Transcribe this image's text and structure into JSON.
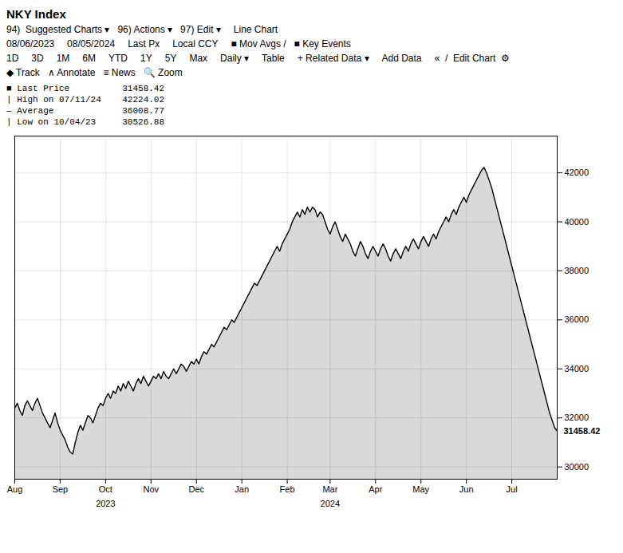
{
  "chart_data": {
    "type": "area",
    "title": "NKY Index",
    "categories": [
      "Aug",
      null,
      null,
      null,
      null,
      null,
      null,
      null,
      null,
      null,
      null,
      null,
      null,
      null,
      null,
      null,
      null,
      null,
      "Sep",
      null,
      null,
      null,
      null,
      null,
      null,
      null,
      null,
      null,
      null,
      null,
      null,
      null,
      null,
      null,
      null,
      null,
      "Oct",
      null,
      null,
      null,
      null,
      null,
      null,
      null,
      null,
      null,
      null,
      null,
      null,
      null,
      null,
      null,
      null,
      null,
      "Nov",
      null,
      null,
      null,
      null,
      null,
      null,
      null,
      null,
      null,
      null,
      null,
      null,
      null,
      null,
      null,
      null,
      null,
      "Dec",
      null,
      null,
      null,
      null,
      null,
      null,
      null,
      null,
      null,
      null,
      null,
      null,
      null,
      null,
      null,
      null,
      null,
      "Jan",
      null,
      null,
      null,
      null,
      null,
      null,
      null,
      null,
      null,
      null,
      null,
      null,
      null,
      null,
      null,
      null,
      null,
      "Feb",
      null,
      null,
      null,
      null,
      null,
      null,
      null,
      null,
      null,
      null,
      null,
      null,
      null,
      null,
      null,
      null,
      "Mar",
      null,
      null,
      null,
      null,
      null,
      null,
      null,
      null,
      null,
      null,
      null,
      null,
      null,
      null,
      null,
      null,
      null,
      "Apr",
      null,
      null,
      null,
      null,
      null,
      null,
      null,
      null,
      null,
      null,
      null,
      null,
      null,
      null,
      null,
      null,
      null,
      "May",
      null,
      null,
      null,
      null,
      null,
      null,
      null,
      null,
      null,
      null,
      null,
      null,
      null,
      null,
      null,
      null,
      null,
      "Jun",
      null,
      null,
      null,
      null,
      null,
      null,
      null,
      null,
      null,
      null,
      null,
      null,
      null,
      null,
      null,
      null,
      null,
      "Jul",
      null,
      null,
      null,
      null,
      null,
      null,
      null,
      null,
      null,
      null,
      null,
      null,
      null,
      null,
      null,
      null,
      null,
      null
    ],
    "values": [
      32400,
      32600,
      32300,
      32100,
      32500,
      32700,
      32500,
      32300,
      32600,
      32800,
      32500,
      32200,
      32000,
      31800,
      31600,
      31900,
      32200,
      31800,
      31500,
      31300,
      31100,
      30800,
      30600,
      30527,
      31000,
      31400,
      31700,
      31500,
      31800,
      32100,
      32000,
      31800,
      32100,
      32400,
      32600,
      32500,
      32800,
      33000,
      32800,
      33100,
      33000,
      33300,
      33100,
      33400,
      33200,
      33500,
      33300,
      33100,
      33400,
      33600,
      33400,
      33700,
      33500,
      33300,
      33500,
      33700,
      33600,
      33800,
      33600,
      33900,
      33700,
      33600,
      33800,
      34000,
      33800,
      34000,
      34200,
      34100,
      33900,
      34100,
      34300,
      34200,
      34400,
      34200,
      34500,
      34700,
      34600,
      34800,
      35000,
      34900,
      35100,
      35300,
      35500,
      35700,
      35600,
      35800,
      36000,
      35900,
      36100,
      36300,
      36500,
      36700,
      36900,
      37100,
      37300,
      37500,
      37400,
      37600,
      37800,
      38000,
      38200,
      38400,
      38600,
      38800,
      39000,
      38800,
      39100,
      39300,
      39500,
      39700,
      40000,
      40200,
      40400,
      40200,
      40500,
      40300,
      40600,
      40400,
      40600,
      40500,
      40200,
      40400,
      40300,
      40000,
      39700,
      39500,
      39800,
      40000,
      39700,
      39400,
      39200,
      39500,
      39300,
      39100,
      38800,
      38600,
      38900,
      39200,
      39000,
      38700,
      38500,
      38800,
      39000,
      38800,
      38600,
      38900,
      39100,
      38900,
      38600,
      38400,
      38700,
      38900,
      38700,
      38500,
      38800,
      39000,
      38800,
      39100,
      39300,
      39100,
      38900,
      39200,
      39400,
      39200,
      39000,
      39300,
      39500,
      39300,
      39600,
      39800,
      40000,
      40200,
      40000,
      40300,
      40500,
      40300,
      40600,
      40800,
      41000,
      40800,
      41100,
      41300,
      41500,
      41700,
      41900,
      42100,
      42224,
      42000,
      41700,
      41400,
      41000,
      40600,
      40200,
      39800,
      39400,
      39000,
      38600,
      38200,
      37800,
      37400,
      37000,
      36600,
      36200,
      35800,
      35400,
      35000,
      34600,
      34200,
      33800,
      33400,
      33000,
      32600,
      32200,
      31900,
      31600,
      31458
    ],
    "ylim": [
      29500,
      43500
    ],
    "yticks": [
      30000,
      32000,
      34000,
      36000,
      38000,
      40000,
      42000
    ],
    "grid": true,
    "annotations": [
      {
        "texts": [
          "94)  Suggested Charts ▾   96) Actions ▾   97) Edit ▾",
          "Line Chart"
        ]
      },
      {
        "texts": [
          "08/06/2023",
          "08/05/2024",
          "Last Px",
          "Local CCY",
          "■ Mov Avgs /   ■ Key Events"
        ]
      },
      {
        "texts": [
          "1D",
          "3D",
          "1M",
          "6M",
          "YTD",
          "1Y",
          "5Y",
          "Max",
          "Daily ▾",
          "Table",
          "+ Related Data ▾",
          "Add Data",
          "«  /  Edit Chart  ⚙"
        ]
      },
      {
        "texts": [
          "◆ Track   ∧ Annotate   ≡ News   🔍 Zoom"
        ]
      },
      {
        "text": "■ Last Price          31458.42"
      },
      {
        "text": "| High on 07/11/24    42224.02"
      },
      {
        "text": "— Average             36008.77"
      },
      {
        "text": "| Low on 10/04/23     30526.88"
      },
      {
        "text": "2023",
        "x": "Oct"
      },
      {
        "text": "2024",
        "x": "Mar"
      },
      {
        "text": "31458.42",
        "y": 31458.42
      }
    ]
  }
}
